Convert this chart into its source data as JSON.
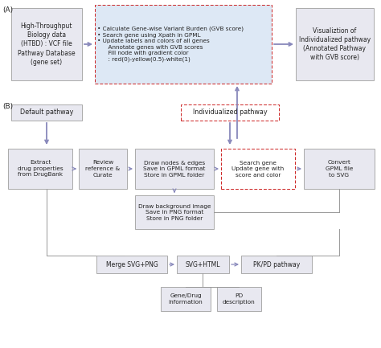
{
  "bg_color": "#ffffff",
  "box_face": "#e8e8f0",
  "box_edge": "#aaaaaa",
  "dashed_face": "#dde8f5",
  "dashed_edge": "#cc2222",
  "arrow_color": "#8888bb",
  "line_color": "#999999",
  "text_color": "#222222",
  "label_A": "(A)",
  "label_B": "(B)",
  "box_A1_text": "High-Throughput\nBiology data\n(HTBD) : VCF file\nPathway Database\n(gene set)",
  "box_A2_text": "• Calculate Gene-wise Variant Burden (GVB score)\n• Search gene using Xpath in GPML\n• Update labels and colors of all genes\n      Annotate genes with GVB scores\n      Fill node with gradient color\n      : red(0)-yellow(0.5)-white(1)",
  "box_A3_text": "Visualiztion of\nIndividualized pathway\n(Annotated Pathway\nwith GVB score)",
  "box_B1_text": "Default pathway",
  "box_B2_text": "Individualized pathway",
  "box_C1_text": "Extract\ndrug properties\nfrom DrugBank",
  "box_C2_text": "Review\nreference &\nCurate",
  "box_C3_text": "Draw nodes & edges\nSave in GPML format\nStore in GPML folder",
  "box_C4_text": "Search gene\nUpdate gene with\nscore and color",
  "box_C5_text": "Convert\nGPML file\nto SVG",
  "box_C6_text": "Draw background image\nSave in PNG format\nStore in PNG folder",
  "box_D1_text": "Merge SVG+PNG",
  "box_D2_text": "SVG+HTML",
  "box_D3_text": "PK/PD pathway",
  "box_E1_text": "Gene/Drug\ninformation",
  "box_E2_text": "PD\ndescription"
}
